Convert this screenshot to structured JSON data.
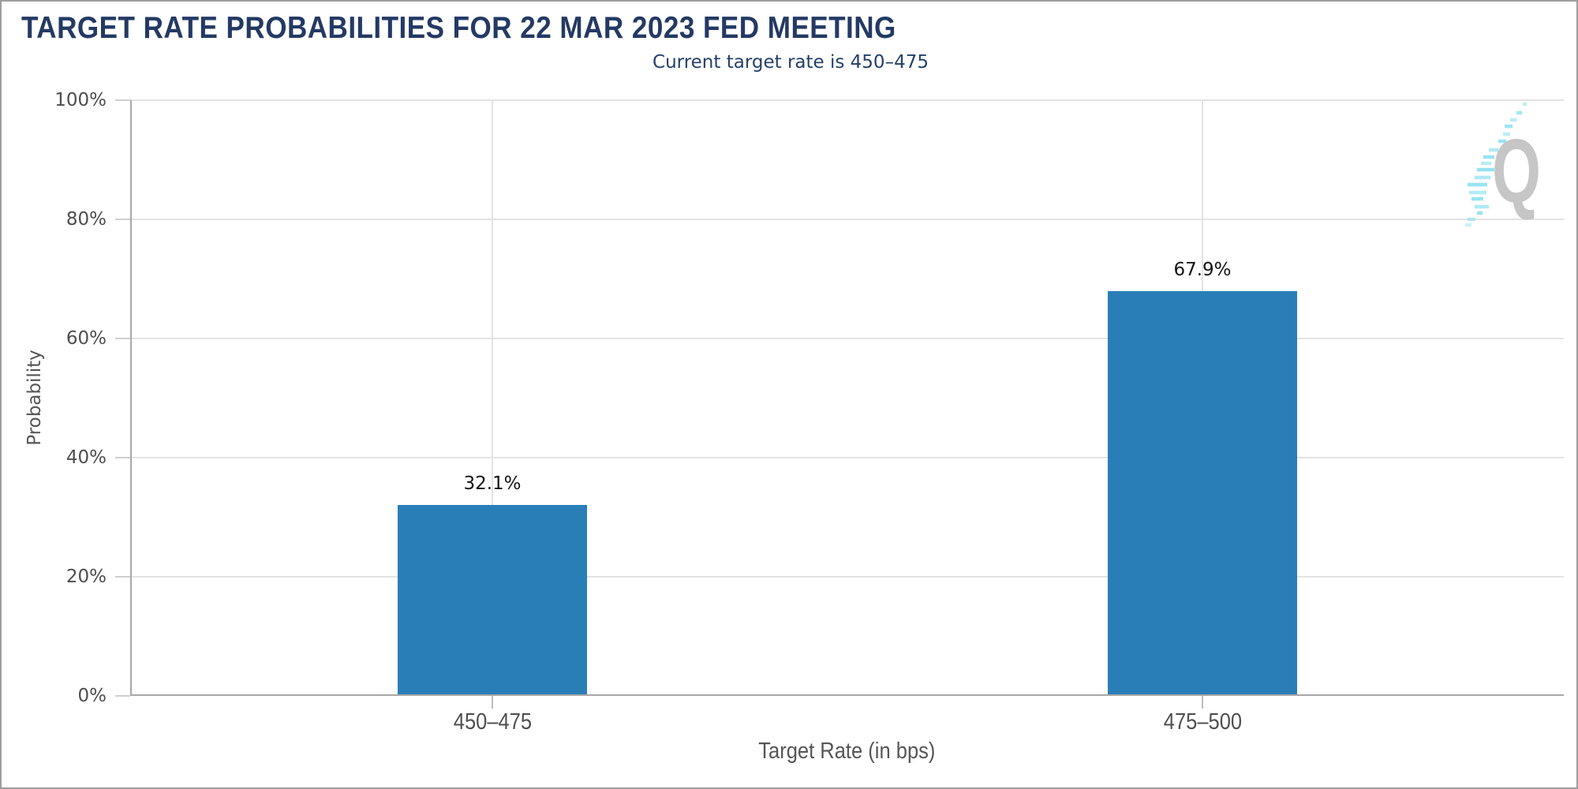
{
  "chart_data": {
    "type": "bar",
    "title": "TARGET RATE PROBABILITIES FOR 22 MAR 2023 FED MEETING",
    "subtitle": "Current target rate is 450–475",
    "xlabel": "Target Rate (in bps)",
    "ylabel": "Probability",
    "categories": [
      "450–475",
      "475–500"
    ],
    "values": [
      32.1,
      67.9
    ],
    "value_labels": [
      "32.1%",
      "67.9%"
    ],
    "yticks": [
      "0%",
      "20%",
      "40%",
      "60%",
      "80%",
      "100%"
    ],
    "ylim": [
      0,
      100
    ],
    "grid": true,
    "legend_position": "none",
    "bar_color": "#2A7EB8"
  },
  "colors": {
    "title_navy": "#243A64",
    "axis_text_gray": "#4D4D4D",
    "gridline": "#E3E3E3",
    "axis_line": "#A8A8A8",
    "outer_border": "#9E9E9E",
    "logo_gray": "#BCBCBC",
    "logo_cyan": "#8CE2F1"
  },
  "logo": {
    "letter": "Q"
  }
}
